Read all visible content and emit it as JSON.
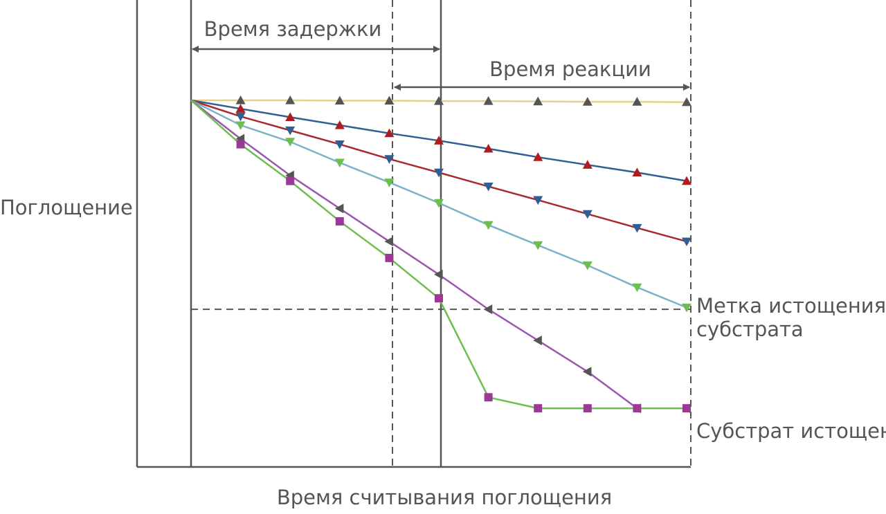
{
  "chart_data": {
    "type": "line",
    "title": "",
    "xlabel": "Время считывания поглощения",
    "ylabel": "Поглощение",
    "xlim": [
      0,
      10
    ],
    "ylim": [
      0,
      10
    ],
    "grid": false,
    "x": [
      0,
      1,
      2,
      3,
      4,
      5,
      6,
      7,
      8,
      9,
      10
    ],
    "series": [
      {
        "marker": "triangle-up",
        "line_color": "#e0d48a",
        "marker_color": "#555555",
        "values": [
          10,
          10,
          10,
          9.99,
          9.99,
          9.98,
          9.98,
          9.97,
          9.96,
          9.96,
          9.95
        ]
      },
      {
        "marker": "triangle-up",
        "line_color": "#2f5e93",
        "marker_color": "#b01c1c",
        "values": [
          10,
          9.77,
          9.54,
          9.32,
          9.1,
          8.9,
          8.68,
          8.45,
          8.24,
          8.03,
          7.8
        ]
      },
      {
        "marker": "triangle-down",
        "line_color": "#a82a2a",
        "marker_color": "#2f5e93",
        "values": [
          10,
          9.56,
          9.18,
          8.8,
          8.4,
          8.03,
          7.65,
          7.28,
          6.9,
          6.52,
          6.15
        ]
      },
      {
        "marker": "triangle-down",
        "line_color": "#7ab2c9",
        "marker_color": "#6cbf4e",
        "values": [
          10,
          9.32,
          8.87,
          8.3,
          7.76,
          7.2,
          6.6,
          6.05,
          5.5,
          4.9,
          4.35
        ]
      },
      {
        "marker": "triangle-left",
        "line_color": "#9b55b0",
        "marker_color": "#555555",
        "values": [
          10,
          8.95,
          7.95,
          7.05,
          6.15,
          5.25,
          4.3,
          3.45,
          2.6,
          1.6,
          1.6
        ]
      },
      {
        "marker": "square",
        "line_color": "#6cbf4e",
        "marker_color": "#9b3a96",
        "values": [
          10,
          8.8,
          7.8,
          6.7,
          5.7,
          4.6,
          1.9,
          1.6,
          1.6,
          1.6,
          1.6
        ]
      }
    ],
    "depletion_mark": 4.3,
    "annotations": {
      "lag_time": "Время задержки",
      "reaction_time": "Время реакции",
      "depletion_mark": "Метка истощения субстрата",
      "depleted": "Субстрат истощен"
    }
  }
}
